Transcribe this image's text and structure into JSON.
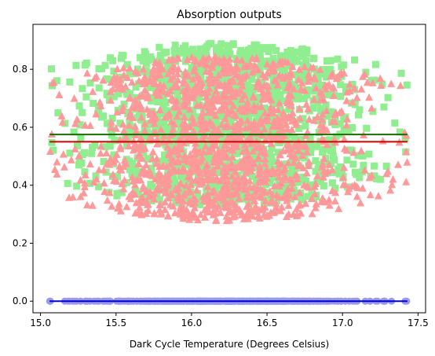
{
  "chart_data": {
    "type": "scatter",
    "title": "Absorption outputs",
    "xlabel": "Dark Cycle Temperature (Degrees Celsius)",
    "ylabel": "",
    "xlim": [
      14.95,
      17.55
    ],
    "ylim": [
      -0.04,
      0.955
    ],
    "xticks": [
      15.0,
      15.5,
      16.0,
      16.5,
      17.0,
      17.5
    ],
    "xtick_labels": [
      "15.0",
      "15.5",
      "16.0",
      "16.5",
      "17.0",
      "17.5"
    ],
    "yticks": [
      0.0,
      0.2,
      0.4,
      0.6,
      0.8
    ],
    "ytick_labels": [
      "0.0",
      "0.2",
      "0.4",
      "0.6",
      "0.8"
    ],
    "grid": false,
    "legend": "none",
    "x_range_of_points": [
      15.06,
      17.43
    ],
    "series": [
      {
        "marker": "square",
        "color": "#90ee90",
        "y_center": 0.61,
        "y_spread_at_center": [
          0.34,
          0.9
        ],
        "approx_points": 1400
      },
      {
        "marker": "triangle",
        "color": "#ff9999",
        "y_center": 0.56,
        "y_spread_at_center": [
          0.3,
          0.87
        ],
        "approx_points": 1400
      },
      {
        "marker": "circle",
        "color": "#9999ee",
        "y_value": 0.0,
        "approx_points": 600
      }
    ],
    "lines": [
      {
        "color": "#1a6e00",
        "y": 0.575,
        "x": [
          15.06,
          17.43
        ]
      },
      {
        "color": "#cc0000",
        "y": 0.55,
        "x": [
          15.06,
          17.43
        ]
      },
      {
        "color": "#0000cc",
        "y": 0.0,
        "x": [
          15.06,
          17.43
        ]
      }
    ]
  }
}
